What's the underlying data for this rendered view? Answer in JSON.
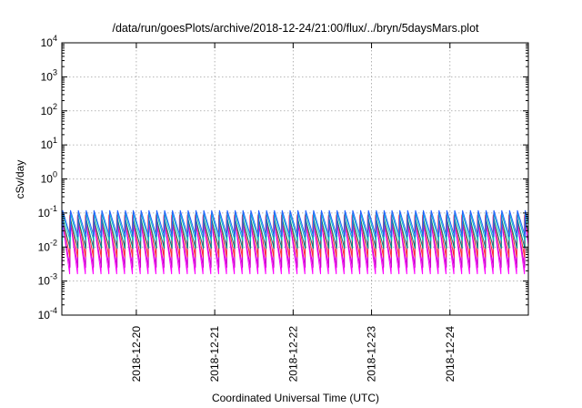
{
  "chart_data": {
    "type": "line",
    "title": "/data/run/goesPlots/archive/2018-12-24/21:00/flux/../bryn/5daysMars.plot",
    "xlabel": "Coordinated Universal Time (UTC)",
    "ylabel": "cSv/day",
    "yscale": "log",
    "ylim_exp": [
      -4,
      4
    ],
    "xlim_days": [
      -0.95,
      5.0
    ],
    "x_ticks": [
      {
        "label": "2018-12-20",
        "day": 0
      },
      {
        "label": "2018-12-21",
        "day": 1
      },
      {
        "label": "2018-12-22",
        "day": 2
      },
      {
        "label": "2018-12-23",
        "day": 3
      },
      {
        "label": "2018-12-24",
        "day": 4
      }
    ],
    "y_ticks": [
      {
        "base": "10",
        "exp": "-4"
      },
      {
        "base": "10",
        "exp": "-3"
      },
      {
        "base": "10",
        "exp": "-2"
      },
      {
        "base": "10",
        "exp": "-1"
      },
      {
        "base": "10",
        "exp": "0"
      },
      {
        "base": "10",
        "exp": "1"
      },
      {
        "base": "10",
        "exp": "2"
      },
      {
        "base": "10",
        "exp": "3"
      },
      {
        "base": "10",
        "exp": "4"
      }
    ],
    "grid": true,
    "legend": "none",
    "cycle_days": 0.1,
    "series": [
      {
        "color": "#ff00ff",
        "peak": 0.08,
        "trough": 0.0016,
        "phase": 0.0
      },
      {
        "color": "#cc00cc",
        "peak": 0.06,
        "trough": 0.0025,
        "phase": 0.004
      },
      {
        "color": "#ff3030",
        "peak": 0.09,
        "trough": 0.005,
        "phase": 0.002
      },
      {
        "color": "#008080",
        "peak": 0.07,
        "trough": 0.009,
        "phase": 0.006
      },
      {
        "color": "#00c0c0",
        "peak": 0.1,
        "trough": 0.015,
        "phase": 0.008
      },
      {
        "color": "#2060ff",
        "peak": 0.12,
        "trough": 0.02,
        "phase": 0.01
      }
    ]
  }
}
